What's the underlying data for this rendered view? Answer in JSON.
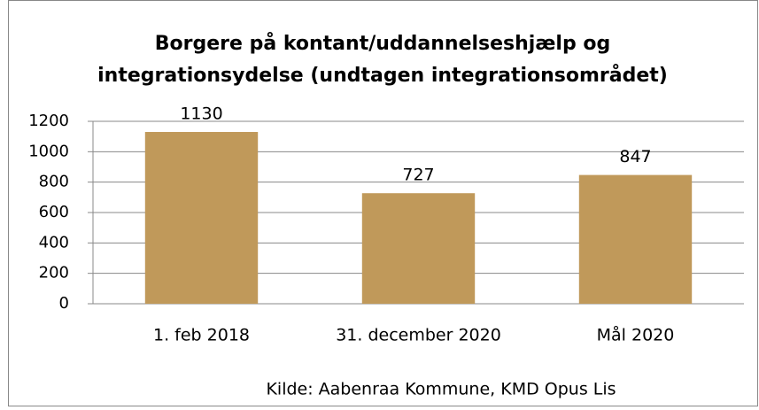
{
  "chart_data": {
    "type": "bar",
    "title": "Borgere på kontant/uddannelseshjælp og integrationsydelse (undtagen integrationsområdet)",
    "categories": [
      "1. feb 2018",
      "31. december 2020",
      "Mål 2020"
    ],
    "values": [
      1130,
      727,
      847
    ],
    "color": "#c0995a",
    "ylim": [
      0,
      1200
    ],
    "yticks": [
      0,
      200,
      400,
      600,
      800,
      1000,
      1200
    ],
    "grid": true,
    "source": "Kilde: Aabenraa Kommune, KMD Opus Lis"
  }
}
